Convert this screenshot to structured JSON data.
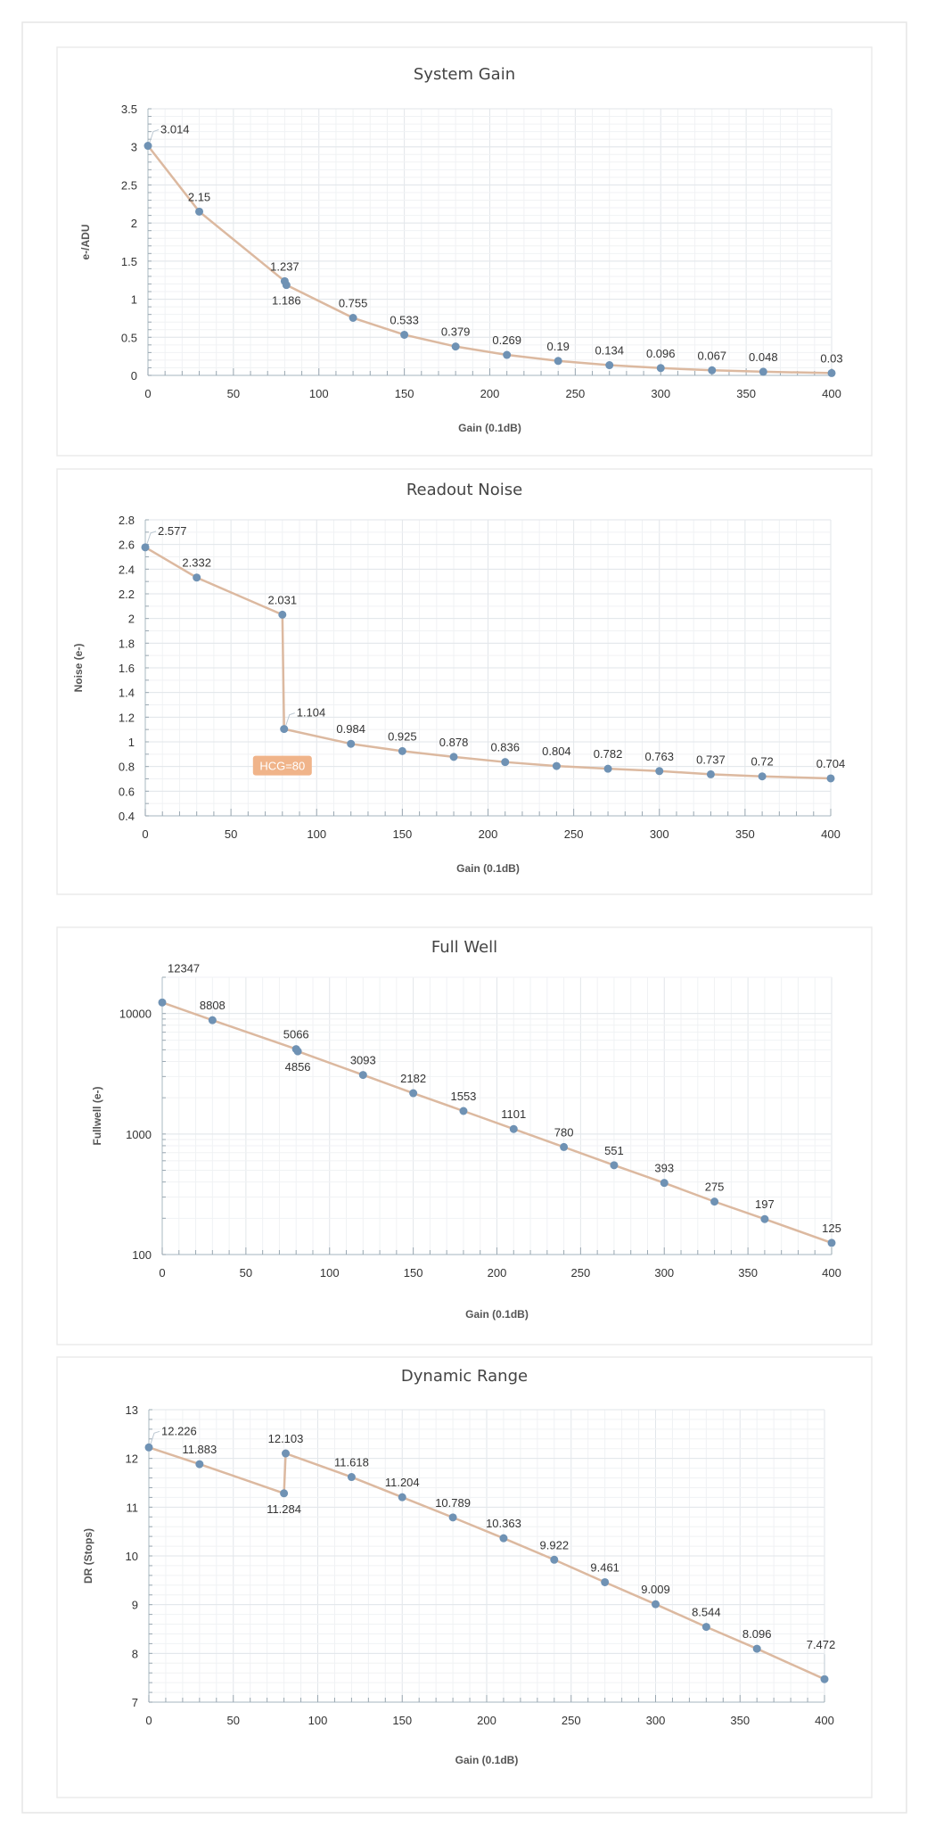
{
  "chart_data": [
    {
      "type": "line",
      "title": "System Gain",
      "xlabel": "Gain (0.1dB)",
      "ylabel": "e-/ADU",
      "xlim": [
        0,
        400
      ],
      "ylim": [
        0,
        3.5
      ],
      "yscale": "linear",
      "xticks": [
        0,
        50,
        100,
        150,
        200,
        250,
        300,
        350,
        400
      ],
      "yticks": [
        0,
        0.5,
        1,
        1.5,
        2,
        2.5,
        3,
        3.5
      ],
      "ytick_labels": [
        "0",
        "0.5",
        "1",
        "1.5",
        "2",
        "2.5",
        "3",
        "3.5"
      ],
      "grid": true,
      "x": [
        0,
        30,
        80,
        81,
        120,
        150,
        180,
        210,
        240,
        270,
        300,
        330,
        360,
        400
      ],
      "y": [
        3.014,
        2.15,
        1.237,
        1.186,
        0.755,
        0.533,
        0.379,
        0.269,
        0.19,
        0.134,
        0.096,
        0.067,
        0.048,
        0.03
      ],
      "labels": [
        "3.014",
        "2.15",
        "1.237",
        "1.186",
        "0.755",
        "0.533",
        "0.379",
        "0.269",
        "0.19",
        "0.134",
        "0.096",
        "0.067",
        "0.048",
        "0.03"
      ],
      "label_pos": [
        "above-right",
        "above",
        "above",
        "below",
        "above",
        "above",
        "above",
        "above",
        "above",
        "above",
        "above",
        "above",
        "above",
        "above"
      ]
    },
    {
      "type": "line",
      "title": "Readout Noise",
      "xlabel": "Gain (0.1dB)",
      "ylabel": "Noise (e-)",
      "xlim": [
        0,
        400
      ],
      "ylim": [
        0.4,
        2.8
      ],
      "yscale": "linear",
      "xticks": [
        0,
        50,
        100,
        150,
        200,
        250,
        300,
        350,
        400
      ],
      "yticks": [
        0.4,
        0.6,
        0.8,
        1,
        1.2,
        1.4,
        1.6,
        1.8,
        2,
        2.2,
        2.4,
        2.6,
        2.8
      ],
      "ytick_labels": [
        "0.4",
        "0.6",
        "0.8",
        "1",
        "1.2",
        "1.4",
        "1.6",
        "1.8",
        "2",
        "2.2",
        "2.4",
        "2.6",
        "2.8"
      ],
      "grid": true,
      "x": [
        0,
        30,
        80,
        81,
        120,
        150,
        180,
        210,
        240,
        270,
        300,
        330,
        360,
        400
      ],
      "y": [
        2.577,
        2.332,
        2.031,
        1.104,
        0.984,
        0.925,
        0.878,
        0.836,
        0.804,
        0.782,
        0.763,
        0.737,
        0.72,
        0.704
      ],
      "labels": [
        "2.577",
        "2.332",
        "2.031",
        "1.104",
        "0.984",
        "0.925",
        "0.878",
        "0.836",
        "0.804",
        "0.782",
        "0.763",
        "0.737",
        "0.72",
        "0.704"
      ],
      "label_pos": [
        "above-right",
        "above",
        "above",
        "above-right",
        "above",
        "above",
        "above",
        "above",
        "above",
        "above",
        "above",
        "above",
        "above",
        "above"
      ],
      "annotation": {
        "text": "HCG=80",
        "x": 80,
        "y": 0.8,
        "color": "#f0b48a"
      }
    },
    {
      "type": "line",
      "title": "Full Well",
      "xlabel": "Gain (0.1dB)",
      "ylabel": "Fullwell (e-)",
      "xlim": [
        0,
        400
      ],
      "ylim": [
        100,
        20000
      ],
      "yscale": "log",
      "xticks": [
        0,
        50,
        100,
        150,
        200,
        250,
        300,
        350,
        400
      ],
      "yticks": [
        100,
        1000,
        10000
      ],
      "ytick_labels": [
        "100",
        "1000",
        "10000"
      ],
      "grid": true,
      "x": [
        0,
        30,
        80,
        81,
        120,
        150,
        180,
        210,
        240,
        270,
        300,
        330,
        360,
        400
      ],
      "y": [
        12347,
        8808,
        5066,
        4856,
        3093,
        2182,
        1553,
        1101,
        780,
        551,
        393,
        275,
        197,
        125
      ],
      "labels": [
        "12347",
        "8808",
        "5066",
        "4856",
        "3093",
        "2182",
        "1553",
        "1101",
        "780",
        "551",
        "393",
        "275",
        "197",
        "125"
      ],
      "label_pos": [
        "leader-top",
        "above",
        "above",
        "below",
        "above",
        "above",
        "above",
        "above",
        "above",
        "above",
        "above",
        "above",
        "above",
        "above"
      ]
    },
    {
      "type": "line",
      "title": "Dynamic Range",
      "xlabel": "Gain (0.1dB)",
      "ylabel": "DR (Stops)",
      "xlim": [
        0,
        400
      ],
      "ylim": [
        7,
        13
      ],
      "yscale": "linear",
      "xticks": [
        0,
        50,
        100,
        150,
        200,
        250,
        300,
        350,
        400
      ],
      "yticks": [
        7,
        8,
        9,
        10,
        11,
        12,
        13
      ],
      "ytick_labels": [
        "7",
        "8",
        "9",
        "10",
        "11",
        "12",
        "13"
      ],
      "grid": true,
      "x": [
        0,
        30,
        80,
        81,
        120,
        150,
        180,
        210,
        240,
        270,
        300,
        330,
        360,
        400
      ],
      "y": [
        12.226,
        11.883,
        11.284,
        12.103,
        11.618,
        11.204,
        10.789,
        10.363,
        9.922,
        9.461,
        9.009,
        8.544,
        8.096,
        7.472
      ],
      "labels": [
        "12.226",
        "11.883",
        "11.284",
        "12.103",
        "11.618",
        "11.204",
        "10.789",
        "10.363",
        "9.922",
        "9.461",
        "9.009",
        "8.544",
        "8.096",
        "7.472"
      ],
      "label_pos": [
        "above-right",
        "above",
        "below",
        "above",
        "above",
        "above",
        "above",
        "above",
        "above",
        "above",
        "above",
        "above",
        "above",
        "leader-top"
      ]
    }
  ],
  "colors": {
    "line": "#dcb9a0",
    "marker": "#6f92b4",
    "grid_major": "#e2e6ea",
    "grid_minor": "#f0f2f4",
    "axis": "#b8c4cc"
  }
}
